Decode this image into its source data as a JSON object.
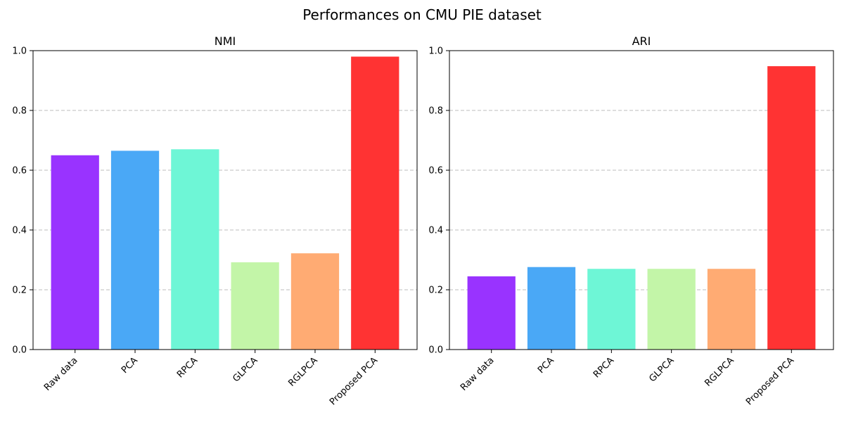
{
  "figure": {
    "title": "Performances on CMU PIE dataset"
  },
  "chart_data": [
    {
      "type": "bar",
      "title": "NMI",
      "xlabel": "",
      "ylabel": "",
      "categories": [
        "Raw data",
        "PCA",
        "RPCA",
        "GLPCA",
        "RGLPCA",
        "Proposed PCA"
      ],
      "values": [
        0.65,
        0.665,
        0.67,
        0.292,
        0.322,
        0.98
      ],
      "colors": [
        "#9933ff",
        "#4aa8f6",
        "#6ef6d6",
        "#c3f5a8",
        "#ffab73",
        "#ff3333"
      ],
      "ylim": [
        0,
        1.0
      ],
      "yticks": [
        "0.0",
        "0.2",
        "0.4",
        "0.6",
        "0.8",
        "1.0"
      ],
      "grid": "y-dashed"
    },
    {
      "type": "bar",
      "title": "ARI",
      "xlabel": "",
      "ylabel": "",
      "categories": [
        "Raw data",
        "PCA",
        "RPCA",
        "GLPCA",
        "RGLPCA",
        "Proposed PCA"
      ],
      "values": [
        0.245,
        0.276,
        0.27,
        0.27,
        0.27,
        0.948
      ],
      "colors": [
        "#9933ff",
        "#4aa8f6",
        "#6ef6d6",
        "#c3f5a8",
        "#ffab73",
        "#ff3333"
      ],
      "ylim": [
        0,
        1.0
      ],
      "yticks": [
        "0.0",
        "0.2",
        "0.4",
        "0.6",
        "0.8",
        "1.0"
      ],
      "grid": "y-dashed"
    }
  ]
}
